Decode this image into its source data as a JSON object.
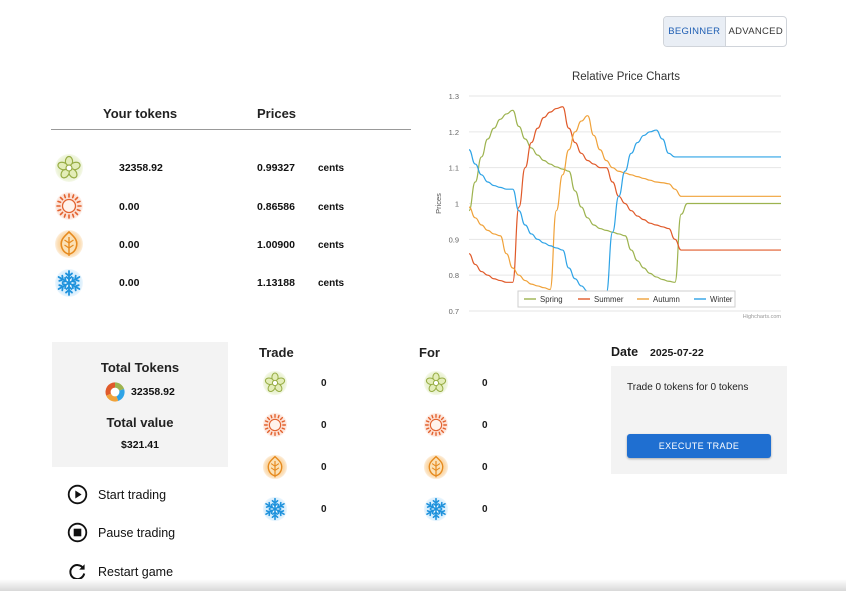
{
  "mode": {
    "beginner": "BEGINNER",
    "advanced": "ADVANCED",
    "active": "beginner"
  },
  "holdings": {
    "col_tokens": "Your tokens",
    "col_prices": "Prices",
    "rows": [
      {
        "icon": "spring-flower-icon",
        "amount": "32358.92",
        "price": "0.99327",
        "unit": "cents"
      },
      {
        "icon": "summer-sun-icon",
        "amount": "0.00",
        "price": "0.86586",
        "unit": "cents"
      },
      {
        "icon": "autumn-leaf-icon",
        "amount": "0.00",
        "price": "1.00900",
        "unit": "cents"
      },
      {
        "icon": "winter-snowflake-icon",
        "amount": "0.00",
        "price": "1.13188",
        "unit": "cents"
      }
    ]
  },
  "totals": {
    "tokens_label": "Total Tokens",
    "tokens_value": "32358.92",
    "value_label": "Total value",
    "value_amount": "$321.41"
  },
  "controls": {
    "start": "Start trading",
    "pause": "Pause trading",
    "restart": "Restart game"
  },
  "trade": {
    "trade_label": "Trade",
    "for_label": "For",
    "trade_qty": [
      "0",
      "0",
      "0",
      "0"
    ],
    "for_qty": [
      "0",
      "0",
      "0",
      "0"
    ],
    "date_label": "Date",
    "date_value": "2025-07-22",
    "summary": "Trade 0 tokens for 0 tokens",
    "execute": "EXECUTE TRADE"
  },
  "colors": {
    "spring": "#9db34f",
    "summer": "#e05a2a",
    "autumn": "#f0a23a",
    "winter": "#2ea3e6",
    "accent": "#1f6fd1"
  },
  "chart_data": {
    "type": "line",
    "title": "Relative Price Charts",
    "ylabel": "Prices",
    "xlabel": "",
    "ylim": [
      0.7,
      1.3
    ],
    "yticks": [
      "1.3",
      "1.2",
      "1.1",
      "1",
      "0.9",
      "0.8",
      "0.7"
    ],
    "credit": "Highcharts.com",
    "legend_position": "bottom",
    "x": [
      0,
      2,
      4,
      6,
      8,
      10,
      12,
      14,
      16,
      18,
      20,
      22,
      24,
      26,
      28,
      30,
      32,
      34,
      36,
      38,
      40,
      42,
      44,
      46,
      48,
      50,
      52,
      54,
      56,
      58,
      60,
      62,
      64,
      66,
      68,
      70,
      72,
      74,
      76,
      78,
      80,
      82,
      84,
      86,
      88,
      90,
      92,
      94,
      96,
      98,
      100
    ],
    "series": [
      {
        "name": "Spring",
        "values": [
          0.98,
          1.06,
          1.13,
          1.18,
          1.21,
          1.235,
          1.25,
          1.26,
          1.215,
          1.18,
          1.155,
          1.135,
          1.12,
          1.11,
          1.102,
          1.096,
          1.09,
          1.035,
          0.99,
          0.96,
          0.94,
          0.93,
          0.925,
          0.92,
          0.915,
          0.91,
          0.87,
          0.84,
          0.82,
          0.805,
          0.795,
          0.788,
          0.783,
          0.78,
          0.97,
          1.0,
          1.0,
          1.0,
          1.0,
          1.0,
          1.0,
          1.0,
          1.0,
          1.0,
          1.0,
          1.0,
          1.0,
          1.0,
          1.0,
          1.0,
          1.0
        ]
      },
      {
        "name": "Summer",
        "values": [
          0.86,
          0.83,
          0.81,
          0.8,
          0.79,
          0.785,
          0.78,
          0.78,
          0.99,
          1.1,
          1.17,
          1.21,
          1.24,
          1.255,
          1.265,
          1.27,
          1.21,
          1.17,
          1.14,
          1.12,
          1.11,
          1.1,
          1.1,
          1.06,
          1.02,
          1.0,
          0.98,
          0.965,
          0.955,
          0.945,
          0.94,
          0.935,
          0.93,
          0.9,
          0.87,
          0.87,
          0.87,
          0.87,
          0.87,
          0.87,
          0.87,
          0.87,
          0.87,
          0.87,
          0.87,
          0.87,
          0.87,
          0.87,
          0.87,
          0.87,
          0.87
        ]
      },
      {
        "name": "Autumn",
        "values": [
          0.99,
          0.96,
          0.94,
          0.925,
          0.915,
          0.91,
          0.86,
          0.82,
          0.8,
          0.785,
          0.775,
          0.77,
          0.765,
          0.76,
          0.98,
          1.08,
          1.15,
          1.2,
          1.23,
          1.245,
          1.19,
          1.15,
          1.12,
          1.1,
          1.09,
          1.085,
          1.08,
          1.075,
          1.07,
          1.065,
          1.06,
          1.058,
          1.055,
          1.04,
          1.02,
          1.02,
          1.02,
          1.02,
          1.02,
          1.02,
          1.02,
          1.02,
          1.02,
          1.02,
          1.02,
          1.02,
          1.02,
          1.02,
          1.02,
          1.02,
          1.02
        ]
      },
      {
        "name": "Winter",
        "values": [
          1.15,
          1.11,
          1.08,
          1.06,
          1.05,
          1.045,
          1.04,
          1.04,
          0.98,
          0.94,
          0.915,
          0.9,
          0.89,
          0.882,
          0.876,
          0.87,
          0.82,
          0.79,
          0.77,
          0.755,
          0.75,
          0.75,
          0.75,
          0.92,
          1.02,
          1.09,
          1.14,
          1.17,
          1.19,
          1.2,
          1.205,
          1.18,
          1.14,
          1.13,
          1.13,
          1.13,
          1.13,
          1.13,
          1.13,
          1.13,
          1.13,
          1.13,
          1.13,
          1.13,
          1.13,
          1.13,
          1.13,
          1.13,
          1.13,
          1.13,
          1.13
        ]
      }
    ]
  }
}
